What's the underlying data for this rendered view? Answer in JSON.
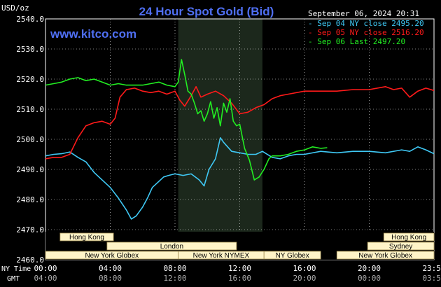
{
  "chart_data": {
    "type": "line",
    "title": "24 Hour Spot Gold (Bid)",
    "watermark": "www.kitco.com",
    "ylabel": "USD/oz",
    "datetime": "September 06, 2024 20:31",
    "ylim": [
      2460,
      2540
    ],
    "yticks": [
      {
        "value": 2540,
        "label": "2540.0"
      },
      {
        "value": 2530,
        "label": "2530.0"
      },
      {
        "value": 2520,
        "label": "2520.0"
      },
      {
        "value": 2510,
        "label": "2510.0"
      },
      {
        "value": 2500,
        "label": "2500.0"
      },
      {
        "value": 2490,
        "label": "2490.0"
      },
      {
        "value": 2480,
        "label": "2480.0"
      },
      {
        "value": 2470,
        "label": "2470.0"
      },
      {
        "value": 2460,
        "label": "2460.0"
      }
    ],
    "xlim": [
      0,
      24
    ],
    "x_time_label_ny": "NY Time",
    "x_time_label_gmt": "GMT",
    "xticks": [
      {
        "x": 0,
        "ny": "00:00",
        "gmt": "04:00"
      },
      {
        "x": 4,
        "ny": "04:00",
        "gmt": "08:00"
      },
      {
        "x": 8,
        "ny": "08:00",
        "gmt": "12:00"
      },
      {
        "x": 12,
        "ny": "12:00",
        "gmt": "16:00"
      },
      {
        "x": 16,
        "ny": "16:00",
        "gmt": "20:00"
      },
      {
        "x": 20,
        "ny": "20:00",
        "gmt": "00:00"
      },
      {
        "x": 24,
        "ny": "23:59",
        "gmt": "03:59"
      }
    ],
    "highlight_region": [
      8.2,
      13.4
    ],
    "legend_position": "top-right",
    "series": [
      {
        "name": "Sep 04 NY close 2495.20",
        "color": "#3fc8f4",
        "x": [
          0,
          0.5,
          1,
          1.5,
          2,
          2.5,
          3,
          3.5,
          4,
          4.5,
          5,
          5.3,
          5.6,
          6,
          6.3,
          6.6,
          7,
          7.3,
          7.6,
          8,
          8.5,
          9,
          9.5,
          9.8,
          10.1,
          10.5,
          10.8,
          11,
          11.5,
          12,
          12.5,
          13,
          13.4,
          14,
          14.5,
          15,
          15.5,
          16,
          17,
          18,
          19,
          20,
          21,
          22,
          22.5,
          23,
          23.5,
          24
        ],
        "values": [
          2494.5,
          2495.0,
          2495.2,
          2495.8,
          2494.0,
          2492.5,
          2489.0,
          2486.5,
          2484.0,
          2480.5,
          2476.5,
          2473.5,
          2474.5,
          2477.5,
          2480.5,
          2484.0,
          2486.0,
          2487.5,
          2488.0,
          2488.5,
          2488.0,
          2488.5,
          2486.5,
          2484.5,
          2490.0,
          2493.5,
          2500.5,
          2499.0,
          2496.0,
          2495.5,
          2495.0,
          2495.0,
          2496.0,
          2494.0,
          2493.5,
          2494.5,
          2495.0,
          2495.0,
          2496.0,
          2495.5,
          2496.0,
          2496.0,
          2495.5,
          2496.5,
          2496.0,
          2497.5,
          2496.5,
          2495.2
        ]
      },
      {
        "name": "Sep 05 NY close 2516.20",
        "color": "#ff1a1a",
        "x": [
          0,
          0.5,
          1,
          1.5,
          2,
          2.5,
          3,
          3.5,
          4,
          4.3,
          4.6,
          5,
          5.5,
          6,
          6.5,
          7,
          7.5,
          8,
          8.3,
          8.6,
          9,
          9.3,
          9.6,
          10,
          10.5,
          11,
          11.5,
          12,
          12.5,
          13,
          13.5,
          14,
          14.5,
          15,
          16,
          17,
          18,
          19,
          20,
          21,
          21.5,
          22,
          22.5,
          23,
          23.5,
          24
        ],
        "values": [
          2493.5,
          2494.0,
          2494.0,
          2495.0,
          2500.5,
          2504.5,
          2505.5,
          2506.0,
          2505.0,
          2507.0,
          2514.0,
          2516.5,
          2517.0,
          2516.0,
          2515.5,
          2516.0,
          2515.0,
          2516.0,
          2513.0,
          2511.0,
          2514.5,
          2517.5,
          2514.0,
          2515.0,
          2516.0,
          2514.5,
          2512.0,
          2508.5,
          2509.0,
          2510.5,
          2511.5,
          2513.5,
          2514.5,
          2515.0,
          2516.0,
          2516.0,
          2516.0,
          2516.5,
          2516.5,
          2517.5,
          2516.5,
          2517.0,
          2514.0,
          2516.0,
          2517.0,
          2516.2
        ]
      },
      {
        "name": "Sep 06 Last 2497.20",
        "color": "#22ee22",
        "x": [
          0,
          0.5,
          1,
          1.5,
          2,
          2.5,
          3,
          3.5,
          4,
          4.5,
          5,
          5.5,
          6,
          6.5,
          7,
          7.5,
          8,
          8.2,
          8.4,
          8.6,
          8.8,
          9,
          9.2,
          9.4,
          9.6,
          9.8,
          10,
          10.2,
          10.4,
          10.6,
          10.8,
          11,
          11.2,
          11.4,
          11.6,
          11.8,
          12,
          12.3,
          12.6,
          12.9,
          13.2,
          13.5,
          13.8,
          14,
          14.5,
          15,
          15.5,
          16,
          16.5,
          17,
          17.4
        ],
        "values": [
          2518.0,
          2518.5,
          2519.0,
          2520.0,
          2520.5,
          2519.5,
          2520.0,
          2519.0,
          2518.0,
          2518.5,
          2518.0,
          2518.0,
          2518.0,
          2518.5,
          2519.0,
          2518.0,
          2517.5,
          2519.0,
          2526.5,
          2521.5,
          2516.0,
          2515.0,
          2512.0,
          2508.5,
          2509.5,
          2506.0,
          2508.5,
          2512.5,
          2507.0,
          2510.5,
          2504.5,
          2512.0,
          2509.0,
          2513.5,
          2506.0,
          2504.5,
          2505.0,
          2497.0,
          2493.0,
          2486.5,
          2487.5,
          2490.0,
          2493.5,
          2494.5,
          2494.5,
          2495.0,
          2496.0,
          2496.5,
          2497.5,
          2497.0,
          2497.2
        ]
      }
    ],
    "sessions": [
      {
        "label": "Hong Kong",
        "start": 0.9,
        "end": 4.2,
        "row": 0
      },
      {
        "label": "London",
        "start": 3.8,
        "end": 11.8,
        "row": 1
      },
      {
        "label": "New York Globex",
        "start": 0,
        "end": 8.2,
        "row": 2
      },
      {
        "label": "New York NYMEX",
        "start": 8.2,
        "end": 13.5,
        "row": 2
      },
      {
        "label": "NY Globex",
        "start": 13.5,
        "end": 17.0,
        "row": 2
      },
      {
        "label": "Hong Kong",
        "start": 20.9,
        "end": 24,
        "row": 0
      },
      {
        "label": "Sydney",
        "start": 19.9,
        "end": 24,
        "row": 1
      },
      {
        "label": "New York Globex",
        "start": 18.0,
        "end": 24,
        "row": 2
      }
    ]
  }
}
